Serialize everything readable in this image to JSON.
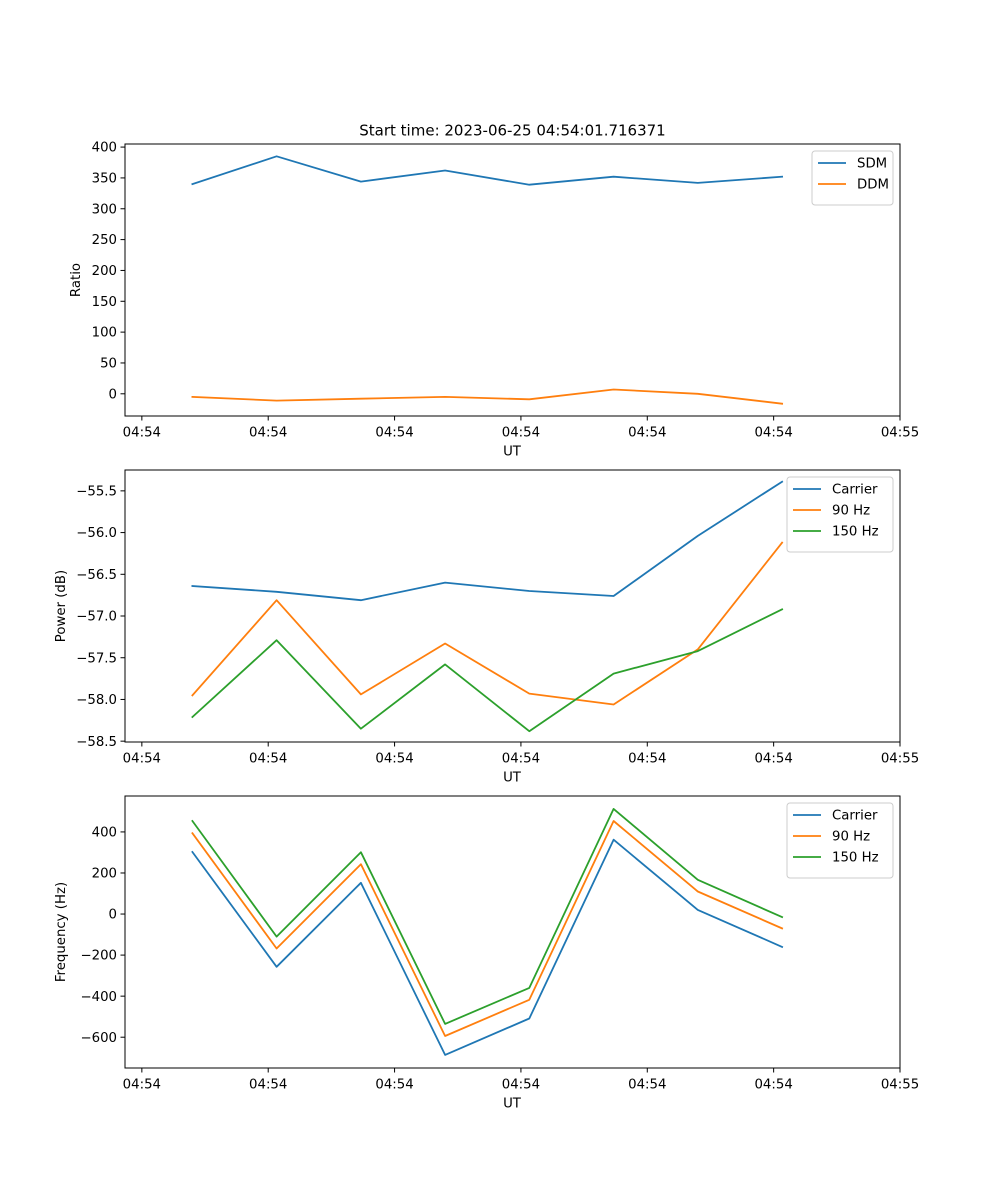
{
  "figure": {
    "title": "Start time: 2023-06-25 04:54:01.716371"
  },
  "chart_data": [
    {
      "type": "line",
      "title": "Start time: 2023-06-25 04:54:01.716371",
      "xlabel": "UT",
      "ylabel": "Ratio",
      "x": [
        1,
        2,
        3,
        4,
        5,
        6,
        7,
        8
      ],
      "xlim": [
        0.2,
        9.4
      ],
      "x_ticks": [
        0.4,
        1.9,
        3.4,
        4.9,
        6.4,
        7.9,
        9.4
      ],
      "x_tick_labels": [
        "04:54",
        "04:54",
        "04:54",
        "04:54",
        "04:54",
        "04:54",
        "04:55"
      ],
      "ylim": [
        -36,
        405
      ],
      "y_ticks": [
        0,
        50,
        100,
        150,
        200,
        250,
        300,
        350,
        400
      ],
      "y_tick_labels": [
        "0",
        "50",
        "100",
        "150",
        "200",
        "250",
        "300",
        "350",
        "400"
      ],
      "grid": false,
      "legend_position": "top-right",
      "series": [
        {
          "name": "SDM",
          "color": "#1f77b4",
          "values": [
            340,
            385,
            344,
            362,
            339,
            352,
            342,
            352
          ]
        },
        {
          "name": "DDM",
          "color": "#ff7f0e",
          "values": [
            -5,
            -11,
            -8,
            -5,
            -9,
            7,
            0,
            -16
          ]
        }
      ]
    },
    {
      "type": "line",
      "xlabel": "UT",
      "ylabel": "Power (dB)",
      "x": [
        1,
        2,
        3,
        4,
        5,
        6,
        7,
        8
      ],
      "xlim": [
        0.2,
        9.4
      ],
      "x_ticks": [
        0.4,
        1.9,
        3.4,
        4.9,
        6.4,
        7.9,
        9.4
      ],
      "x_tick_labels": [
        "04:54",
        "04:54",
        "04:54",
        "04:54",
        "04:54",
        "04:54",
        "04:55"
      ],
      "ylim": [
        -58.51,
        -55.25
      ],
      "y_ticks": [
        -58.5,
        -58.0,
        -57.5,
        -57.0,
        -56.5,
        -56.0,
        -55.5
      ],
      "y_tick_labels": [
        "−58.5",
        "−58.0",
        "−57.5",
        "−57.0",
        "−56.5",
        "−56.0",
        "−55.5"
      ],
      "grid": false,
      "legend_position": "top-right",
      "series": [
        {
          "name": "Carrier",
          "color": "#1f77b4",
          "values": [
            -56.64,
            -56.71,
            -56.81,
            -56.6,
            -56.7,
            -56.76,
            -56.04,
            -55.39
          ]
        },
        {
          "name": "90 Hz",
          "color": "#ff7f0e",
          "values": [
            -57.95,
            -56.81,
            -57.94,
            -57.33,
            -57.93,
            -58.06,
            -57.4,
            -56.12
          ]
        },
        {
          "name": "150 Hz",
          "color": "#2ca02c",
          "values": [
            -58.21,
            -57.29,
            -58.35,
            -57.58,
            -58.38,
            -57.69,
            -57.42,
            -56.92
          ]
        }
      ]
    },
    {
      "type": "line",
      "xlabel": "UT",
      "ylabel": "Frequency (Hz)",
      "x": [
        1,
        2,
        3,
        4,
        5,
        6,
        7,
        8
      ],
      "xlim": [
        0.2,
        9.4
      ],
      "x_ticks": [
        0.4,
        1.9,
        3.4,
        4.9,
        6.4,
        7.9,
        9.4
      ],
      "x_tick_labels": [
        "04:54",
        "04:54",
        "04:54",
        "04:54",
        "04:54",
        "04:54",
        "04:55"
      ],
      "ylim": [
        -750,
        575
      ],
      "y_ticks": [
        -600,
        -400,
        -200,
        0,
        200,
        400
      ],
      "y_tick_labels": [
        "−600",
        "−400",
        "−200",
        "0",
        "200",
        "400"
      ],
      "grid": false,
      "legend_position": "top-right",
      "series": [
        {
          "name": "Carrier",
          "color": "#1f77b4",
          "values": [
            302,
            -257,
            152,
            -686,
            -509,
            362,
            20,
            -160
          ]
        },
        {
          "name": "90 Hz",
          "color": "#ff7f0e",
          "values": [
            394,
            -168,
            243,
            -594,
            -418,
            453,
            110,
            -70
          ]
        },
        {
          "name": "150 Hz",
          "color": "#2ca02c",
          "values": [
            453,
            -110,
            301,
            -535,
            -360,
            512,
            167,
            -15
          ]
        }
      ]
    }
  ]
}
